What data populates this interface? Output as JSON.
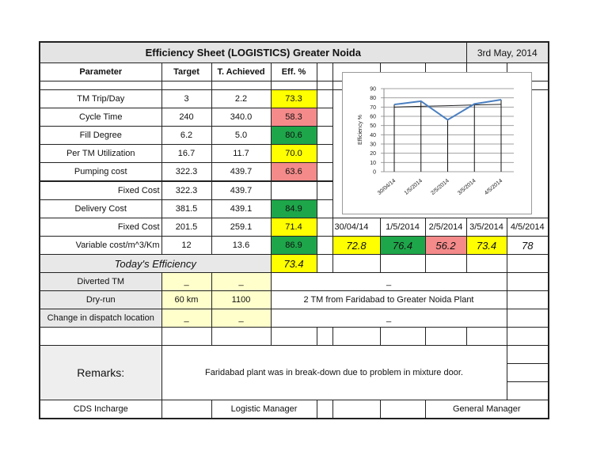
{
  "sheet": {
    "title": "Efficiency Sheet (LOGISTICS) Greater Noida",
    "date": "3rd May, 2014",
    "headers": {
      "parameter": "Parameter",
      "target": "Target",
      "achieved": "T. Achieved",
      "eff": "Eff. %"
    },
    "rows": [
      {
        "parameter": "TM Trip/Day",
        "target": "3",
        "achieved": "2.2",
        "eff": "73.3",
        "status": "yellow"
      },
      {
        "parameter": "Cycle Time",
        "target": "240",
        "achieved": "340.0",
        "eff": "58.3",
        "status": "red"
      },
      {
        "parameter": "Fill Degree",
        "target": "6.2",
        "achieved": "5.0",
        "eff": "80.6",
        "status": "green"
      },
      {
        "parameter": "Per TM Utilization",
        "target": "16.7",
        "achieved": "11.7",
        "eff": "70.0",
        "status": "yellow"
      },
      {
        "parameter": "Pumping cost",
        "target": "322.3",
        "achieved": "439.7",
        "eff": "63.6",
        "status": "red"
      },
      {
        "parameter": "Fixed Cost",
        "target": "322.3",
        "achieved": "439.7",
        "eff": "",
        "status": "none"
      },
      {
        "parameter": "Delivery Cost",
        "target": "381.5",
        "achieved": "439.1",
        "eff": "84.9",
        "status": "green"
      },
      {
        "parameter": "Fixed Cost",
        "target": "201.5",
        "achieved": "259.1",
        "eff": "71.4",
        "status": "yellow"
      },
      {
        "parameter": "Variable cost/m^3/Km",
        "target": "12",
        "achieved": "13.6",
        "eff": "86.9",
        "status": "green"
      }
    ],
    "todays_efficiency": {
      "label": "Today's Efficiency",
      "value": "73.4"
    },
    "history": {
      "dates": [
        "30/04/14",
        "1/5/2014",
        "2/5/2014",
        "3/5/2014",
        "4/5/2014"
      ],
      "values": [
        "72.8",
        "76.4",
        "56.2",
        "73.4",
        "78"
      ]
    },
    "extra_rows": [
      {
        "parameter": "Diverted TM",
        "target": "_",
        "achieved": "_",
        "note": "_"
      },
      {
        "parameter": "Dry-run",
        "target": "60 km",
        "achieved": "1100",
        "note": "2 TM from Faridabad to Greater Noida Plant"
      },
      {
        "parameter": "Change in dispatch location",
        "target": "_",
        "achieved": "_",
        "note": "_"
      }
    ],
    "remarks": {
      "label": "Remarks:",
      "text": "Faridabad plant was in break-down due to problem in mixture door."
    },
    "signatures": {
      "cds": "CDS Incharge",
      "logistic": "Logistic Manager",
      "general": "General Manager"
    }
  },
  "colors": {
    "yellow": "#ffff00",
    "red": "#f48a8a",
    "green": "#1ea64a",
    "pale_yellow": "#ffffcc",
    "line": "#4a7fc1"
  },
  "chart_data": {
    "type": "line",
    "title": "",
    "xlabel": "",
    "ylabel": "Efficiency %",
    "categories": [
      "30/04/14",
      "1/5/2014",
      "2/5/2014",
      "3/5/2014",
      "4/5/2014"
    ],
    "series": [
      {
        "name": "Efficiency",
        "values": [
          72.8,
          76.4,
          56.2,
          73.4,
          78
        ]
      },
      {
        "name": "Trend",
        "values": [
          70.0,
          70.8,
          71.5,
          72.3,
          73.0
        ]
      }
    ],
    "ylim": [
      0,
      90
    ],
    "yticks": [
      0,
      10,
      20,
      30,
      40,
      50,
      60,
      70,
      80,
      90
    ],
    "grid": true,
    "legend": "none"
  }
}
